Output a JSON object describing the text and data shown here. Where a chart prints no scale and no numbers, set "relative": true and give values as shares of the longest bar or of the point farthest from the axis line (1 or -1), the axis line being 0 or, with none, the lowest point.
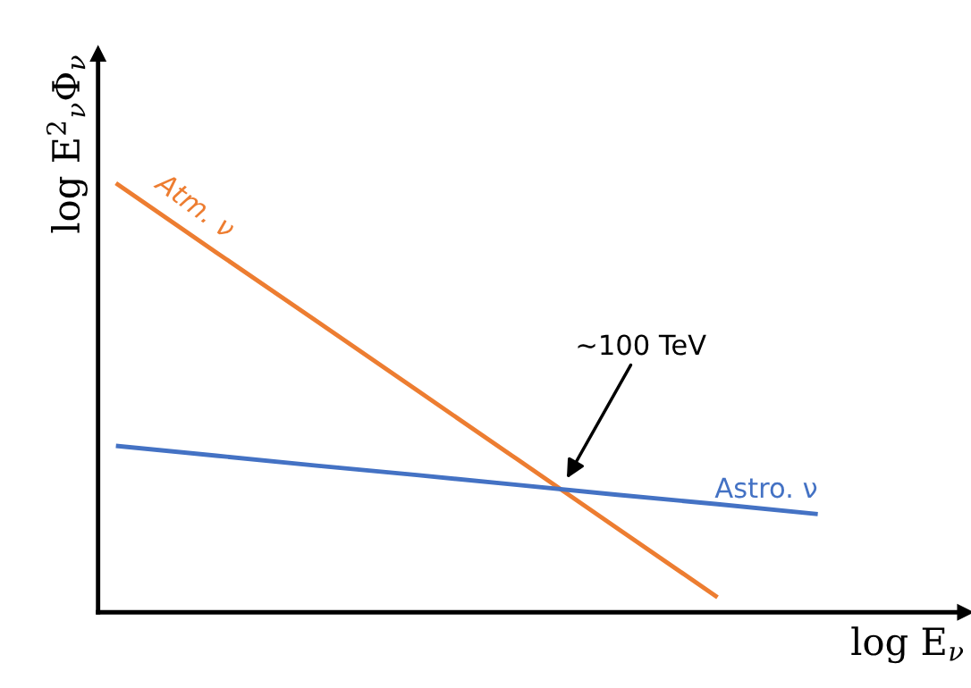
{
  "chart_data": {
    "type": "line",
    "relative": true,
    "xlabel": "log E$_{ν}$",
    "ylabel": "log E$^{2}$$_{ν}$Φ$_{ν}$",
    "categories": [
      null,
      null,
      null,
      null,
      null,
      null,
      null,
      null
    ],
    "series": [
      {
        "name": "Atm. ν",
        "color": "#ed7d31",
        "values": [
          1,
          0.839,
          0.679,
          0.518,
          0.357,
          0.196,
          0.035,
          null
        ]
      },
      {
        "name": "Astro. ν",
        "color": "#4472c4",
        "values": [
          0.388,
          0.365,
          0.342,
          0.32,
          0.297,
          0.274,
          0.252,
          0.229
        ]
      }
    ],
    "annotations": [
      "∼100 TeV"
    ],
    "legend": false,
    "grid": false,
    "marker": "none",
    "line_style": "solid"
  }
}
